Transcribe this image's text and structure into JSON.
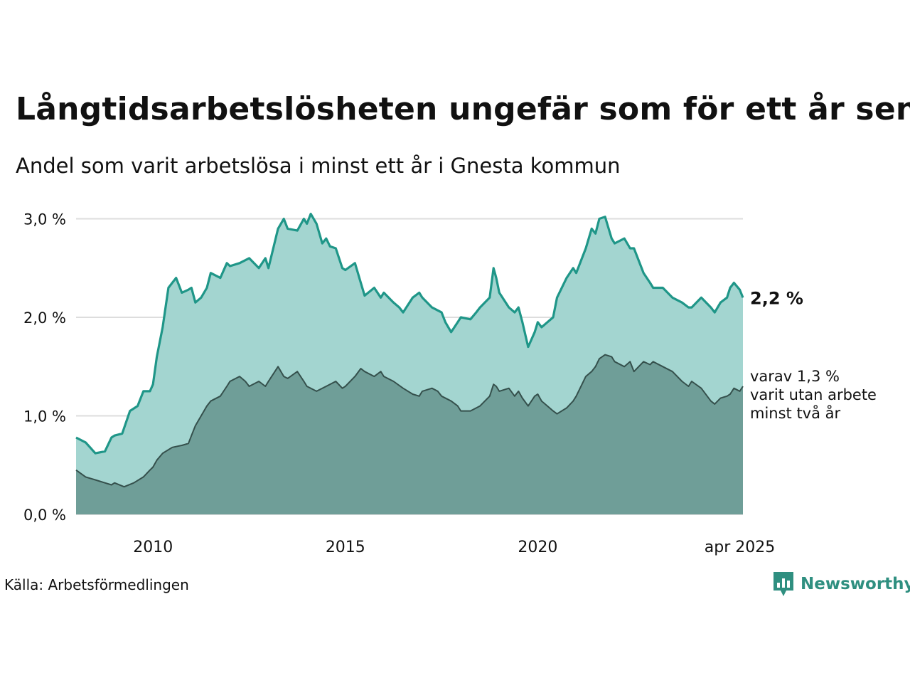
{
  "title": "Långtidsarbetslösheten ungefär som för ett år sen",
  "subtitle": "Andel som varit arbetslösa i minst ett år i Gnesta kommun",
  "source": "Källa: Arbetsförmedlingen",
  "brand": {
    "name": "Newsworthy",
    "icon": "newsworthy-logo-icon",
    "color": "#2f8f80"
  },
  "colors": {
    "main_line": "#1f9688",
    "main_fill": "#a3d5d0",
    "sub_line": "#35504c",
    "sub_fill": "#6f9e98",
    "grid": "#dddddd"
  },
  "chart_data": {
    "type": "area",
    "ylim": [
      0,
      3.1
    ],
    "y_ticks": [
      {
        "value": 0,
        "label": "0,0 %"
      },
      {
        "value": 1,
        "label": "1,0 %"
      },
      {
        "value": 2,
        "label": "2,0 %"
      },
      {
        "value": 3,
        "label": "3,0 %"
      }
    ],
    "x_ticks": [
      {
        "value": 2010,
        "label": "2010"
      },
      {
        "value": 2015,
        "label": "2015"
      },
      {
        "value": 2020,
        "label": "2020"
      },
      {
        "value": 2025.25,
        "label": "apr 2025"
      }
    ],
    "x_range": [
      2008.0,
      2025.333
    ],
    "grid": true,
    "series": [
      {
        "name": "",
        "end_label": "2,2 %",
        "points": [
          [
            2008.0,
            0.78
          ],
          [
            2008.25,
            0.73
          ],
          [
            2008.5,
            0.62
          ],
          [
            2008.75,
            0.64
          ],
          [
            2008.92,
            0.78
          ],
          [
            2009.0,
            0.8
          ],
          [
            2009.2,
            0.82
          ],
          [
            2009.4,
            1.05
          ],
          [
            2009.6,
            1.1
          ],
          [
            2009.75,
            1.25
          ],
          [
            2009.92,
            1.25
          ],
          [
            2010.0,
            1.32
          ],
          [
            2010.1,
            1.6
          ],
          [
            2010.25,
            1.9
          ],
          [
            2010.4,
            2.3
          ],
          [
            2010.5,
            2.35
          ],
          [
            2010.6,
            2.4
          ],
          [
            2010.75,
            2.25
          ],
          [
            2010.92,
            2.28
          ],
          [
            2011.0,
            2.3
          ],
          [
            2011.1,
            2.15
          ],
          [
            2011.25,
            2.2
          ],
          [
            2011.4,
            2.3
          ],
          [
            2011.5,
            2.45
          ],
          [
            2011.75,
            2.4
          ],
          [
            2011.92,
            2.55
          ],
          [
            2012.0,
            2.52
          ],
          [
            2012.25,
            2.55
          ],
          [
            2012.5,
            2.6
          ],
          [
            2012.75,
            2.5
          ],
          [
            2012.92,
            2.6
          ],
          [
            2013.0,
            2.5
          ],
          [
            2013.25,
            2.9
          ],
          [
            2013.4,
            3.0
          ],
          [
            2013.5,
            2.9
          ],
          [
            2013.75,
            2.88
          ],
          [
            2013.92,
            3.0
          ],
          [
            2014.0,
            2.95
          ],
          [
            2014.1,
            3.05
          ],
          [
            2014.25,
            2.95
          ],
          [
            2014.4,
            2.75
          ],
          [
            2014.5,
            2.8
          ],
          [
            2014.6,
            2.72
          ],
          [
            2014.75,
            2.7
          ],
          [
            2014.92,
            2.5
          ],
          [
            2015.0,
            2.48
          ],
          [
            2015.25,
            2.55
          ],
          [
            2015.4,
            2.35
          ],
          [
            2015.5,
            2.22
          ],
          [
            2015.75,
            2.3
          ],
          [
            2015.92,
            2.2
          ],
          [
            2016.0,
            2.25
          ],
          [
            2016.25,
            2.15
          ],
          [
            2016.4,
            2.1
          ],
          [
            2016.5,
            2.05
          ],
          [
            2016.75,
            2.2
          ],
          [
            2016.92,
            2.25
          ],
          [
            2017.0,
            2.2
          ],
          [
            2017.25,
            2.1
          ],
          [
            2017.5,
            2.05
          ],
          [
            2017.6,
            1.95
          ],
          [
            2017.75,
            1.85
          ],
          [
            2017.92,
            1.95
          ],
          [
            2018.0,
            2.0
          ],
          [
            2018.25,
            1.98
          ],
          [
            2018.4,
            2.05
          ],
          [
            2018.5,
            2.1
          ],
          [
            2018.75,
            2.2
          ],
          [
            2018.85,
            2.5
          ],
          [
            2018.92,
            2.4
          ],
          [
            2019.0,
            2.25
          ],
          [
            2019.25,
            2.1
          ],
          [
            2019.4,
            2.05
          ],
          [
            2019.5,
            2.1
          ],
          [
            2019.6,
            1.95
          ],
          [
            2019.75,
            1.7
          ],
          [
            2019.92,
            1.85
          ],
          [
            2020.0,
            1.95
          ],
          [
            2020.1,
            1.9
          ],
          [
            2020.25,
            1.95
          ],
          [
            2020.4,
            2.0
          ],
          [
            2020.5,
            2.2
          ],
          [
            2020.75,
            2.4
          ],
          [
            2020.92,
            2.5
          ],
          [
            2021.0,
            2.45
          ],
          [
            2021.25,
            2.7
          ],
          [
            2021.4,
            2.9
          ],
          [
            2021.5,
            2.85
          ],
          [
            2021.6,
            3.0
          ],
          [
            2021.75,
            3.02
          ],
          [
            2021.92,
            2.8
          ],
          [
            2022.0,
            2.75
          ],
          [
            2022.25,
            2.8
          ],
          [
            2022.4,
            2.7
          ],
          [
            2022.5,
            2.7
          ],
          [
            2022.75,
            2.45
          ],
          [
            2022.92,
            2.35
          ],
          [
            2023.0,
            2.3
          ],
          [
            2023.25,
            2.3
          ],
          [
            2023.5,
            2.2
          ],
          [
            2023.75,
            2.15
          ],
          [
            2023.92,
            2.1
          ],
          [
            2024.0,
            2.1
          ],
          [
            2024.25,
            2.2
          ],
          [
            2024.5,
            2.1
          ],
          [
            2024.6,
            2.05
          ],
          [
            2024.75,
            2.15
          ],
          [
            2024.92,
            2.2
          ],
          [
            2025.0,
            2.3
          ],
          [
            2025.1,
            2.35
          ],
          [
            2025.25,
            2.28
          ],
          [
            2025.333,
            2.2
          ]
        ]
      },
      {
        "name": "",
        "end_label": "varav 1,3 %\nvarit utan arbete\nminst två år",
        "points": [
          [
            2008.0,
            0.45
          ],
          [
            2008.25,
            0.38
          ],
          [
            2008.5,
            0.35
          ],
          [
            2008.75,
            0.32
          ],
          [
            2008.92,
            0.3
          ],
          [
            2009.0,
            0.32
          ],
          [
            2009.25,
            0.28
          ],
          [
            2009.5,
            0.32
          ],
          [
            2009.75,
            0.38
          ],
          [
            2009.92,
            0.45
          ],
          [
            2010.0,
            0.48
          ],
          [
            2010.1,
            0.55
          ],
          [
            2010.25,
            0.62
          ],
          [
            2010.5,
            0.68
          ],
          [
            2010.75,
            0.7
          ],
          [
            2010.92,
            0.72
          ],
          [
            2011.0,
            0.8
          ],
          [
            2011.1,
            0.9
          ],
          [
            2011.25,
            1.0
          ],
          [
            2011.4,
            1.1
          ],
          [
            2011.5,
            1.15
          ],
          [
            2011.75,
            1.2
          ],
          [
            2011.92,
            1.3
          ],
          [
            2012.0,
            1.35
          ],
          [
            2012.25,
            1.4
          ],
          [
            2012.4,
            1.35
          ],
          [
            2012.5,
            1.3
          ],
          [
            2012.75,
            1.35
          ],
          [
            2012.92,
            1.3
          ],
          [
            2013.0,
            1.35
          ],
          [
            2013.25,
            1.5
          ],
          [
            2013.4,
            1.4
          ],
          [
            2013.5,
            1.38
          ],
          [
            2013.75,
            1.45
          ],
          [
            2013.92,
            1.35
          ],
          [
            2014.0,
            1.3
          ],
          [
            2014.25,
            1.25
          ],
          [
            2014.5,
            1.3
          ],
          [
            2014.75,
            1.35
          ],
          [
            2014.92,
            1.28
          ],
          [
            2015.0,
            1.3
          ],
          [
            2015.25,
            1.4
          ],
          [
            2015.4,
            1.48
          ],
          [
            2015.5,
            1.45
          ],
          [
            2015.75,
            1.4
          ],
          [
            2015.92,
            1.45
          ],
          [
            2016.0,
            1.4
          ],
          [
            2016.25,
            1.35
          ],
          [
            2016.5,
            1.28
          ],
          [
            2016.75,
            1.22
          ],
          [
            2016.92,
            1.2
          ],
          [
            2017.0,
            1.25
          ],
          [
            2017.25,
            1.28
          ],
          [
            2017.4,
            1.25
          ],
          [
            2017.5,
            1.2
          ],
          [
            2017.75,
            1.15
          ],
          [
            2017.92,
            1.1
          ],
          [
            2018.0,
            1.05
          ],
          [
            2018.25,
            1.05
          ],
          [
            2018.5,
            1.1
          ],
          [
            2018.75,
            1.2
          ],
          [
            2018.85,
            1.32
          ],
          [
            2018.92,
            1.3
          ],
          [
            2019.0,
            1.25
          ],
          [
            2019.25,
            1.28
          ],
          [
            2019.4,
            1.2
          ],
          [
            2019.5,
            1.25
          ],
          [
            2019.6,
            1.18
          ],
          [
            2019.75,
            1.1
          ],
          [
            2019.92,
            1.2
          ],
          [
            2020.0,
            1.22
          ],
          [
            2020.1,
            1.15
          ],
          [
            2020.25,
            1.1
          ],
          [
            2020.4,
            1.05
          ],
          [
            2020.5,
            1.02
          ],
          [
            2020.75,
            1.08
          ],
          [
            2020.92,
            1.15
          ],
          [
            2021.0,
            1.2
          ],
          [
            2021.25,
            1.4
          ],
          [
            2021.4,
            1.45
          ],
          [
            2021.5,
            1.5
          ],
          [
            2021.6,
            1.58
          ],
          [
            2021.75,
            1.62
          ],
          [
            2021.92,
            1.6
          ],
          [
            2022.0,
            1.55
          ],
          [
            2022.25,
            1.5
          ],
          [
            2022.4,
            1.55
          ],
          [
            2022.5,
            1.45
          ],
          [
            2022.75,
            1.55
          ],
          [
            2022.92,
            1.52
          ],
          [
            2023.0,
            1.55
          ],
          [
            2023.25,
            1.5
          ],
          [
            2023.5,
            1.45
          ],
          [
            2023.75,
            1.35
          ],
          [
            2023.92,
            1.3
          ],
          [
            2024.0,
            1.35
          ],
          [
            2024.25,
            1.28
          ],
          [
            2024.5,
            1.15
          ],
          [
            2024.6,
            1.12
          ],
          [
            2024.75,
            1.18
          ],
          [
            2024.92,
            1.2
          ],
          [
            2025.0,
            1.22
          ],
          [
            2025.1,
            1.28
          ],
          [
            2025.25,
            1.25
          ],
          [
            2025.333,
            1.3
          ]
        ]
      }
    ]
  }
}
